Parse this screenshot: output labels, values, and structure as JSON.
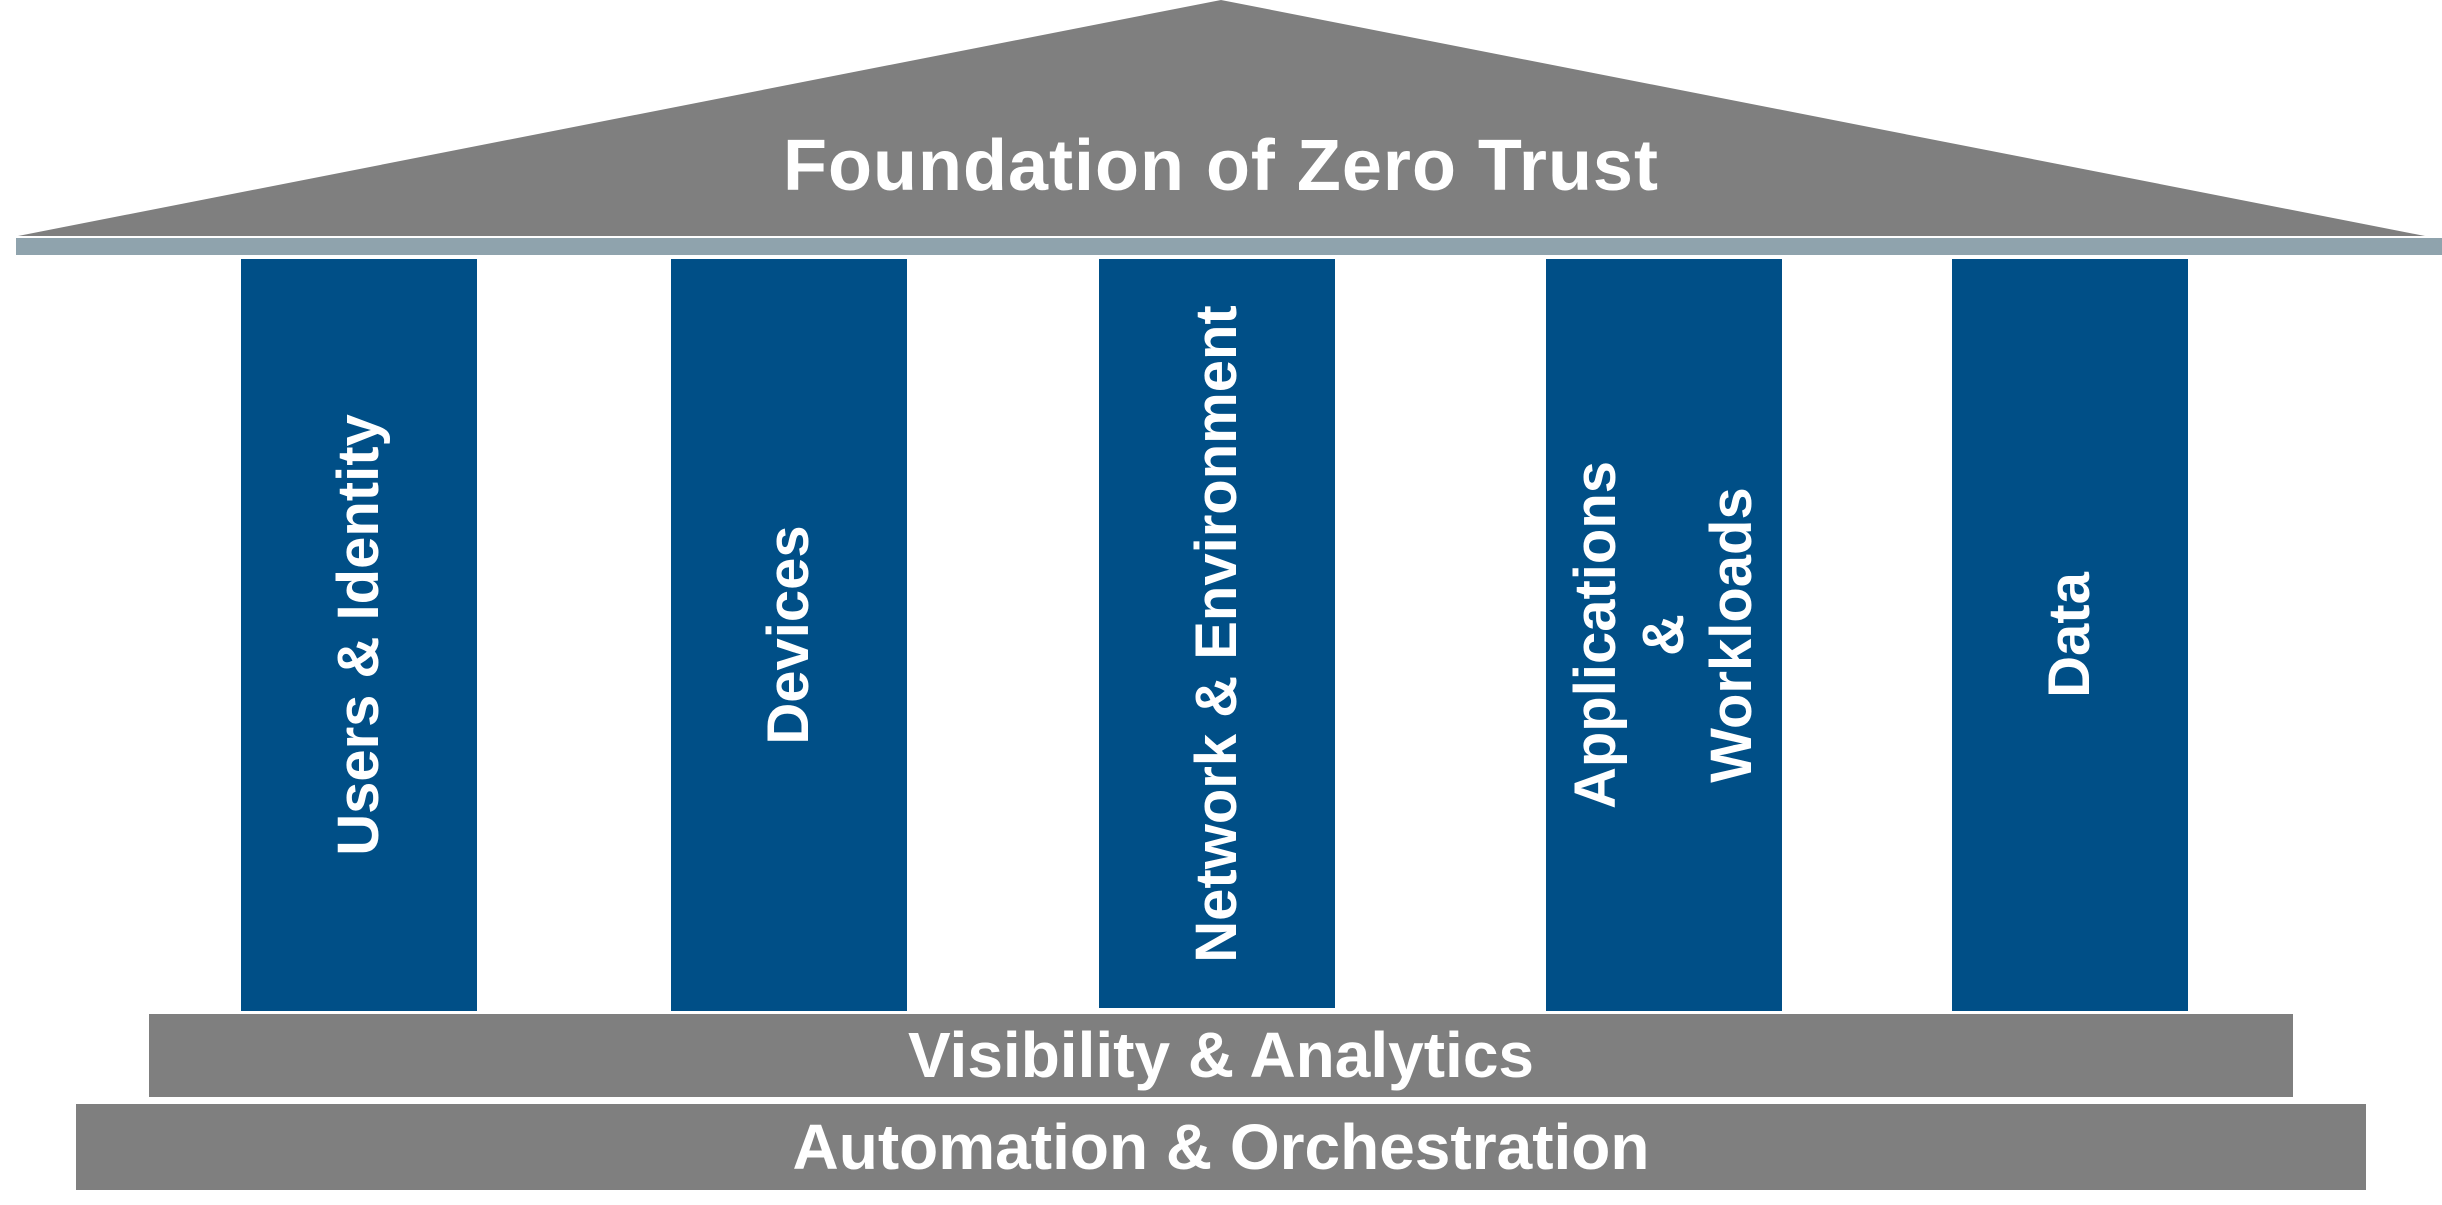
{
  "roof": {
    "title": "Foundation of Zero Trust"
  },
  "pillars": [
    {
      "label": "Users & Identity"
    },
    {
      "label": "Devices"
    },
    {
      "label": "Network & Environment"
    },
    {
      "label": "Applications &\nWorkloads"
    },
    {
      "label": "Data"
    }
  ],
  "base": {
    "visibility": "Visibility & Analytics",
    "automation": "Automation & Orchestration"
  },
  "colors": {
    "roof": "#7f7f7f",
    "beam": "#8fa3ad",
    "pillar": "#004f87",
    "text": "#ffffff",
    "base": "#7f7f7f"
  }
}
